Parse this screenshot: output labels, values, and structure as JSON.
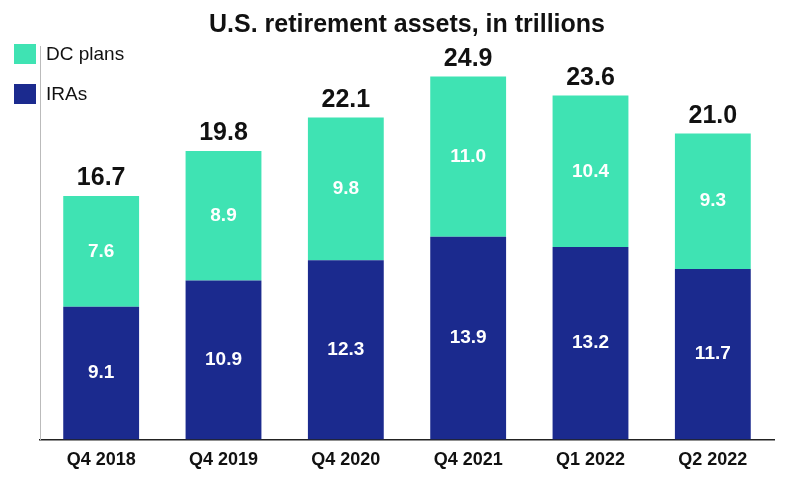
{
  "chart_data": {
    "type": "bar",
    "title": "U.S. retirement assets, in trillions",
    "categories": [
      "Q4 2018",
      "Q4 2019",
      "Q4 2020",
      "Q4 2021",
      "Q1 2022",
      "Q2 2022"
    ],
    "series": [
      {
        "name": "DC plans",
        "color": "#3fe3b3",
        "values": [
          7.6,
          8.9,
          9.8,
          11.0,
          10.4,
          9.3
        ],
        "value_labels": [
          "7.6",
          "8.9",
          "9.8",
          "11.0",
          "10.4",
          "9.3"
        ]
      },
      {
        "name": "IRAs",
        "color": "#1b2a8e",
        "values": [
          9.1,
          10.9,
          12.3,
          13.9,
          13.2,
          11.7
        ],
        "value_labels": [
          "9.1",
          "10.9",
          "12.3",
          "13.9",
          "13.2",
          "11.7"
        ]
      }
    ],
    "totals": {
      "values": [
        16.7,
        19.8,
        22.1,
        24.9,
        23.6,
        21.0
      ],
      "value_labels": [
        "16.7",
        "19.8",
        "22.1",
        "24.9",
        "23.6",
        "21.0"
      ]
    },
    "ylim": [
      0,
      27
    ],
    "stacked": true,
    "data_labels": true,
    "legend": "top-left",
    "grid": false,
    "tick_labels": "x"
  }
}
